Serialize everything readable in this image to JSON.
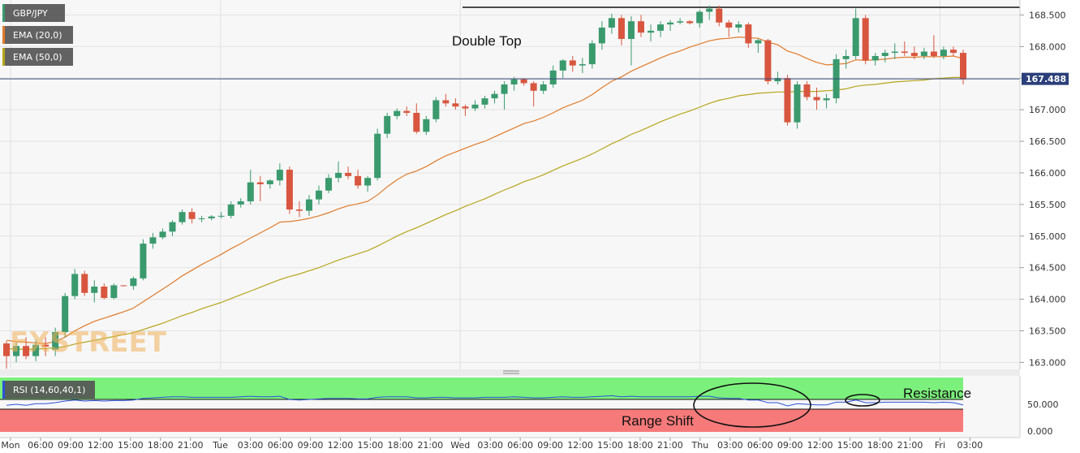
{
  "chart_data": {
    "type": "candlestick",
    "symbol": "GBP/JPY",
    "current_price": "167.488",
    "y_ticks": [
      "163.000",
      "163.500",
      "164.000",
      "164.500",
      "165.000",
      "165.500",
      "166.000",
      "166.500",
      "167.000",
      "167.500",
      "168.000",
      "168.500"
    ],
    "ylim": [
      162.9,
      168.75
    ],
    "x_ticks": [
      "Mon",
      "06:00",
      "09:00",
      "12:00",
      "15:00",
      "18:00",
      "21:00",
      "Tue",
      "03:00",
      "06:00",
      "09:00",
      "12:00",
      "15:00",
      "18:00",
      "21:00",
      "Wed",
      "03:00",
      "06:00",
      "09:00",
      "12:00",
      "15:00",
      "18:00",
      "21:00",
      "Thu",
      "03:00",
      "06:00",
      "09:00",
      "12:00",
      "15:00",
      "18:00",
      "21:00",
      "Fri",
      "03:00"
    ],
    "legend": [
      "GBP/JPY",
      "EMA (20,0)",
      "EMA (50,0)"
    ],
    "annotations": {
      "double_top": "Double Top",
      "resistance": "Resistance",
      "range_shift": "Range Shift",
      "watermark": "FXSTREET"
    },
    "rsi": {
      "label": "RSI (14,60,40,1)",
      "y_ticks": [
        "50.000",
        "0.000"
      ]
    },
    "colors": {
      "bull": "#3a9a6e",
      "bear": "#d8563f",
      "ema20": "#e07a2a",
      "ema50": "#b5a51c",
      "rsi_line": "#2a52d8",
      "rsi_upper": "#7cf07c",
      "rsi_lower": "#f77a7a"
    },
    "candles": [
      [
        163.3,
        163.34,
        162.9,
        163.1
      ],
      [
        163.1,
        163.32,
        163.0,
        163.26
      ],
      [
        163.26,
        163.4,
        163.05,
        163.1
      ],
      [
        163.1,
        163.36,
        163.02,
        163.28
      ],
      [
        163.28,
        163.4,
        163.1,
        163.25
      ],
      [
        163.2,
        163.55,
        163.1,
        163.48
      ],
      [
        163.48,
        164.1,
        163.4,
        164.05
      ],
      [
        164.05,
        164.48,
        164.0,
        164.4
      ],
      [
        164.4,
        164.45,
        164.05,
        164.1
      ],
      [
        164.1,
        164.3,
        163.95,
        164.2
      ],
      [
        164.2,
        164.25,
        164.0,
        164.02
      ],
      [
        164.02,
        164.25,
        164.0,
        164.22
      ],
      [
        164.22,
        164.22,
        164.2,
        164.21
      ],
      [
        164.21,
        164.36,
        164.15,
        164.33
      ],
      [
        164.33,
        164.95,
        164.3,
        164.88
      ],
      [
        164.88,
        165.05,
        164.8,
        164.98
      ],
      [
        164.98,
        165.12,
        164.95,
        165.07
      ],
      [
        165.07,
        165.25,
        165.0,
        165.22
      ],
      [
        165.22,
        165.42,
        165.18,
        165.38
      ],
      [
        165.38,
        165.44,
        165.2,
        165.27
      ],
      [
        165.27,
        165.32,
        165.22,
        165.28
      ],
      [
        165.28,
        165.33,
        165.25,
        165.31
      ],
      [
        165.31,
        165.38,
        165.28,
        165.32
      ],
      [
        165.32,
        165.55,
        165.28,
        165.5
      ],
      [
        165.5,
        165.6,
        165.45,
        165.55
      ],
      [
        165.55,
        166.05,
        165.5,
        165.85
      ],
      [
        165.85,
        165.95,
        165.55,
        165.82
      ],
      [
        165.82,
        165.9,
        165.75,
        165.88
      ],
      [
        165.88,
        166.15,
        165.8,
        166.05
      ],
      [
        166.05,
        166.1,
        165.35,
        165.42
      ],
      [
        165.42,
        165.55,
        165.3,
        165.4
      ],
      [
        165.4,
        165.65,
        165.32,
        165.58
      ],
      [
        165.58,
        165.8,
        165.5,
        165.72
      ],
      [
        165.72,
        165.98,
        165.68,
        165.92
      ],
      [
        165.92,
        166.18,
        165.85,
        166.0
      ],
      [
        166.0,
        166.1,
        165.9,
        165.95
      ],
      [
        165.95,
        166.05,
        165.75,
        165.8
      ],
      [
        165.8,
        165.95,
        165.7,
        165.92
      ],
      [
        165.92,
        166.7,
        165.88,
        166.62
      ],
      [
        166.62,
        166.95,
        166.55,
        166.9
      ],
      [
        166.9,
        167.02,
        166.85,
        166.98
      ],
      [
        166.98,
        167.05,
        166.9,
        166.95
      ],
      [
        166.95,
        167.1,
        166.62,
        166.65
      ],
      [
        166.65,
        166.9,
        166.6,
        166.85
      ],
      [
        166.85,
        167.2,
        166.8,
        167.15
      ],
      [
        167.15,
        167.25,
        167.05,
        167.1
      ],
      [
        167.1,
        167.18,
        167.0,
        167.05
      ],
      [
        167.05,
        167.08,
        166.9,
        167.02
      ],
      [
        167.02,
        167.15,
        166.98,
        167.08
      ],
      [
        167.08,
        167.22,
        167.02,
        167.18
      ],
      [
        167.18,
        167.3,
        167.1,
        167.25
      ],
      [
        167.25,
        167.45,
        167.0,
        167.4
      ],
      [
        167.4,
        167.52,
        167.3,
        167.48
      ],
      [
        167.48,
        167.5,
        167.38,
        167.42
      ],
      [
        167.42,
        167.45,
        167.05,
        167.3
      ],
      [
        167.3,
        167.45,
        167.25,
        167.4
      ],
      [
        167.4,
        167.7,
        167.35,
        167.62
      ],
      [
        167.62,
        167.8,
        167.5,
        167.78
      ],
      [
        167.78,
        167.85,
        167.6,
        167.7
      ],
      [
        167.7,
        167.82,
        167.58,
        167.72
      ],
      [
        167.72,
        168.1,
        167.65,
        168.05
      ],
      [
        168.05,
        168.4,
        167.95,
        168.3
      ],
      [
        168.3,
        168.52,
        168.2,
        168.45
      ],
      [
        168.45,
        168.5,
        168.02,
        168.12
      ],
      [
        168.12,
        168.48,
        167.7,
        168.4
      ],
      [
        168.4,
        168.5,
        168.15,
        168.22
      ],
      [
        168.22,
        168.35,
        168.08,
        168.25
      ],
      [
        168.25,
        168.4,
        168.15,
        168.35
      ],
      [
        168.35,
        168.42,
        168.25,
        168.38
      ],
      [
        168.38,
        168.45,
        168.35,
        168.4
      ],
      [
        168.4,
        168.42,
        168.35,
        168.37
      ],
      [
        168.37,
        168.58,
        168.3,
        168.55
      ],
      [
        168.55,
        168.65,
        168.42,
        168.6
      ],
      [
        168.6,
        168.65,
        168.32,
        168.38
      ],
      [
        168.38,
        168.42,
        168.15,
        168.3
      ],
      [
        168.3,
        168.4,
        168.22,
        168.35
      ],
      [
        168.35,
        168.38,
        167.98,
        168.05
      ],
      [
        168.05,
        168.12,
        167.9,
        168.1
      ],
      [
        168.1,
        168.12,
        167.4,
        167.45
      ],
      [
        167.45,
        167.6,
        167.4,
        167.5
      ],
      [
        167.5,
        167.55,
        166.75,
        166.8
      ],
      [
        166.8,
        167.45,
        166.7,
        167.4
      ],
      [
        167.4,
        167.45,
        167.15,
        167.2
      ],
      [
        167.2,
        167.35,
        167.0,
        167.15
      ],
      [
        167.15,
        167.25,
        167.02,
        167.18
      ],
      [
        167.18,
        167.88,
        167.1,
        167.8
      ],
      [
        167.8,
        167.95,
        167.65,
        167.85
      ],
      [
        167.85,
        168.6,
        167.8,
        168.45
      ],
      [
        168.45,
        168.5,
        167.72,
        167.78
      ],
      [
        167.78,
        167.9,
        167.7,
        167.85
      ],
      [
        167.85,
        167.95,
        167.75,
        167.9
      ],
      [
        167.9,
        168.05,
        167.8,
        167.92
      ],
      [
        167.92,
        168.08,
        167.85,
        167.9
      ],
      [
        167.9,
        168.0,
        167.8,
        167.85
      ],
      [
        167.85,
        167.98,
        167.8,
        167.92
      ],
      [
        167.92,
        168.18,
        167.82,
        167.85
      ],
      [
        167.85,
        168.0,
        167.8,
        167.95
      ],
      [
        167.95,
        168.0,
        167.85,
        167.9
      ],
      [
        167.9,
        167.95,
        167.4,
        167.48
      ]
    ],
    "ema20": [
      163.35,
      163.33,
      163.32,
      163.31,
      163.3,
      163.33,
      163.4,
      163.5,
      163.58,
      163.65,
      163.7,
      163.75,
      163.8,
      163.86,
      163.96,
      164.06,
      164.16,
      164.26,
      164.37,
      164.46,
      164.55,
      164.63,
      164.71,
      164.8,
      164.88,
      164.97,
      165.05,
      165.13,
      165.22,
      165.23,
      165.25,
      165.28,
      165.32,
      165.37,
      165.43,
      165.48,
      165.51,
      165.55,
      165.65,
      165.78,
      165.89,
      165.98,
      166.03,
      166.1,
      166.19,
      166.27,
      166.33,
      166.39,
      166.45,
      166.5,
      166.57,
      166.64,
      166.71,
      166.78,
      166.82,
      166.88,
      166.95,
      167.03,
      167.09,
      167.15,
      167.24,
      167.35,
      167.45,
      167.52,
      167.61,
      167.68,
      167.75,
      167.82,
      167.88,
      167.93,
      167.99,
      168.04,
      168.09,
      168.12,
      168.13,
      168.15,
      168.14,
      168.13,
      168.07,
      168.03,
      167.93,
      167.88,
      167.81,
      167.75,
      167.71,
      167.72,
      167.73,
      167.79,
      167.78,
      167.79,
      167.8,
      167.82,
      167.83,
      167.83,
      167.84,
      167.84,
      167.84,
      167.85,
      167.81
    ],
    "ema50": [
      163.22,
      163.21,
      163.21,
      163.21,
      163.22,
      163.23,
      163.25,
      163.29,
      163.32,
      163.35,
      163.38,
      163.41,
      163.44,
      163.47,
      163.52,
      163.57,
      163.62,
      163.68,
      163.74,
      163.79,
      163.85,
      163.9,
      163.95,
      164.01,
      164.07,
      164.13,
      164.19,
      164.25,
      164.31,
      164.36,
      164.4,
      164.45,
      164.5,
      164.56,
      164.62,
      164.67,
      164.72,
      164.77,
      164.84,
      164.92,
      165.0,
      165.07,
      165.13,
      165.2,
      165.27,
      165.34,
      165.4,
      165.47,
      165.53,
      165.59,
      165.66,
      165.73,
      165.79,
      165.86,
      165.91,
      165.97,
      166.04,
      166.11,
      166.17,
      166.23,
      166.3,
      166.38,
      166.46,
      166.53,
      166.61,
      166.67,
      166.74,
      166.81,
      166.87,
      166.93,
      166.98,
      167.04,
      167.1,
      167.15,
      167.18,
      167.22,
      167.24,
      167.26,
      167.27,
      167.28,
      167.28,
      167.29,
      167.29,
      167.29,
      167.3,
      167.31,
      167.33,
      167.37,
      167.39,
      167.4,
      167.42,
      167.44,
      167.45,
      167.46,
      167.47,
      167.49,
      167.5,
      167.51,
      167.51
    ],
    "rsi_values": [
      48,
      50,
      48,
      51,
      51,
      53,
      56,
      58,
      56,
      57,
      56,
      57,
      57,
      58,
      61,
      62,
      63,
      64,
      64,
      63,
      63,
      63,
      63,
      63,
      64,
      65,
      64,
      64,
      65,
      59,
      58,
      59,
      60,
      61,
      61,
      61,
      60,
      60,
      63,
      64,
      64,
      64,
      62,
      62,
      63,
      63,
      62,
      62,
      62,
      63,
      63,
      63,
      64,
      63,
      62,
      62,
      63,
      64,
      63,
      63,
      64,
      65,
      66,
      64,
      65,
      64,
      64,
      64,
      64,
      64,
      64,
      65,
      65,
      62,
      61,
      61,
      58,
      58,
      53,
      53,
      47,
      51,
      50,
      49,
      49,
      54,
      54,
      58,
      53,
      53,
      54,
      54,
      54,
      54,
      54,
      53,
      54,
      53,
      49
    ]
  }
}
